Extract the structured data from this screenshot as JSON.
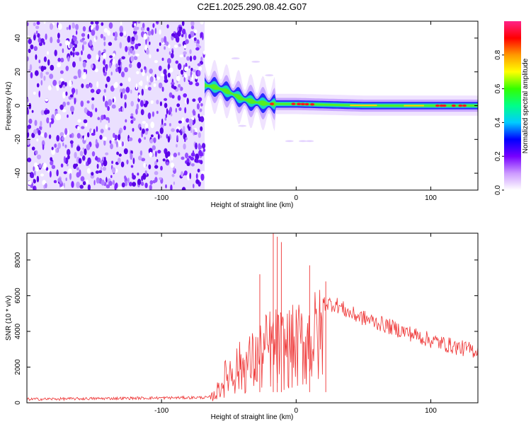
{
  "title": "C2E1.2025.290.08.42.G07",
  "chart_data": [
    {
      "type": "heatmap",
      "name": "spectrogram",
      "xlabel": "Height of straight line (km)",
      "ylabel": "Frequency (Hz)",
      "xlim": [
        -200,
        135
      ],
      "ylim": [
        -50,
        50
      ],
      "xticks": [
        -100,
        0,
        100
      ],
      "yticks": [
        -40,
        -20,
        0,
        20,
        40
      ],
      "noise_region_x": [
        -200,
        -68
      ],
      "ridge": [
        {
          "x": -68,
          "y": 12
        },
        {
          "x": -60,
          "y": 11
        },
        {
          "x": -50,
          "y": 8
        },
        {
          "x": -40,
          "y": 4
        },
        {
          "x": -30,
          "y": 2
        },
        {
          "x": -20,
          "y": 1
        },
        {
          "x": 0,
          "y": 1
        },
        {
          "x": 50,
          "y": 0
        },
        {
          "x": 100,
          "y": 0
        },
        {
          "x": 135,
          "y": 0
        }
      ],
      "colorbar": {
        "label": "Normalized spectral amplitude",
        "range": [
          0,
          1
        ],
        "ticks": [
          0.0,
          0.2,
          0.4,
          0.6,
          0.8
        ],
        "tick_labels": [
          "0.0",
          "0.2",
          "0.4",
          "0.6",
          "0.8"
        ],
        "colors": [
          "#ffffff",
          "#cc99ff",
          "#7700ff",
          "#0000ff",
          "#00ccff",
          "#00ff88",
          "#33ff00",
          "#ffff00",
          "#ff9900",
          "#ff0000",
          "#ff2288"
        ]
      }
    },
    {
      "type": "line",
      "name": "snr",
      "xlabel": "Height of straight line (km)",
      "ylabel": "SNR (10 * v/v)",
      "xlim": [
        -200,
        135
      ],
      "ylim": [
        0,
        9500
      ],
      "xticks": [
        -100,
        0,
        100
      ],
      "yticks": [
        0,
        2000,
        4000,
        6000,
        8000
      ],
      "color": "#ee3333",
      "envelope": [
        {
          "x": -200,
          "y": 200
        },
        {
          "x": -65,
          "y": 300
        },
        {
          "x": -60,
          "y": 700
        },
        {
          "x": -50,
          "y": 2500
        },
        {
          "x": -40,
          "y": 3000
        },
        {
          "x": -30,
          "y": 3500
        },
        {
          "x": -20,
          "y": 4500
        },
        {
          "x": -10,
          "y": 4500
        },
        {
          "x": 0,
          "y": 4600
        },
        {
          "x": 10,
          "y": 5200
        },
        {
          "x": 20,
          "y": 5600
        },
        {
          "x": 30,
          "y": 5500
        },
        {
          "x": 40,
          "y": 5000
        },
        {
          "x": 60,
          "y": 4500
        },
        {
          "x": 80,
          "y": 4000
        },
        {
          "x": 100,
          "y": 3500
        },
        {
          "x": 120,
          "y": 3100
        },
        {
          "x": 135,
          "y": 2900
        }
      ],
      "spikes": [
        {
          "x": -27,
          "y": 7200
        },
        {
          "x": -17,
          "y": 9500
        },
        {
          "x": -14,
          "y": 9300
        },
        {
          "x": -11,
          "y": 9000
        },
        {
          "x": 10,
          "y": 7700
        },
        {
          "x": 22,
          "y": 6800
        }
      ]
    }
  ]
}
